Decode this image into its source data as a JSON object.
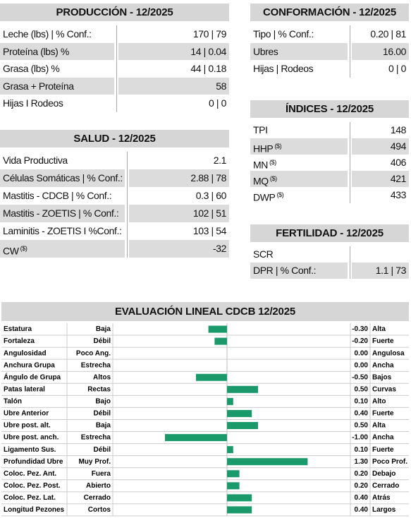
{
  "produccion": {
    "title": "PRODUCCIÓN - 12/2025",
    "rows": [
      {
        "label": "Leche (lbs) | % Conf.:",
        "value": "170 | 79"
      },
      {
        "label": "Proteína (lbs) %",
        "value": "14 | 0.04"
      },
      {
        "label": "Grasa (lbs) %",
        "value": "44 | 0.18"
      },
      {
        "label": "Grasa + Proteína",
        "value": "58"
      },
      {
        "label": "Hijas I Rodeos",
        "value": "0 | 0"
      }
    ]
  },
  "salud": {
    "title": "SALUD - 12/2025",
    "rows": [
      {
        "label": "Vida Productiva",
        "value": "2.1"
      },
      {
        "label": "Células Somáticas | % Conf.:",
        "value": "2.88 | 78"
      },
      {
        "label": "Mastitis - CDCB | % Conf.:",
        "value": "0.3 | 60"
      },
      {
        "label": "Mastitis - ZOETIS | % Conf.:",
        "value": "102 | 51"
      },
      {
        "label": "Laminitis - ZOETIS I %Conf.:",
        "value": "103  | 54"
      },
      {
        "label": "CW",
        "sup": "($)",
        "value": "-32"
      }
    ]
  },
  "conformacion": {
    "title": "CONFORMACIÓN - 12/2025",
    "rows": [
      {
        "label": "Tipo | % Conf.:",
        "value": "0.20 | 81"
      },
      {
        "label": "Ubres",
        "value": "16.00"
      },
      {
        "label": "Hijas | Rodeos",
        "value": "0 | 0"
      }
    ]
  },
  "indices": {
    "title": "ÍNDICES - 12/2025",
    "rows": [
      {
        "label": "TPI",
        "value": "148"
      },
      {
        "label": "HHP",
        "sup": "($)",
        "value": "494"
      },
      {
        "label": "MN",
        "sup": "($)",
        "value": "406"
      },
      {
        "label": "MQ",
        "sup": "($)",
        "value": "421"
      },
      {
        "label": "DWP",
        "sup": "($)",
        "value": "433"
      }
    ]
  },
  "fertilidad": {
    "title": "FERTILIDAD - 12/2025",
    "rows": [
      {
        "label": "SCR"
      },
      {
        "label": "DPR | % Conf.:",
        "value": "1.1 | 73"
      }
    ]
  },
  "linear": {
    "title": "EVALUACIÓN LINEAL CDCB 12/2025",
    "bar_color": "#1a9a6a",
    "traits": [
      {
        "name": "Estatura",
        "low": "Baja",
        "value": -0.3,
        "label": "-0.30",
        "high": "Alta"
      },
      {
        "name": "Fortaleza",
        "low": "Débil",
        "value": -0.2,
        "label": "-0.20",
        "high": "Fuerte"
      },
      {
        "name": "Angulosidad",
        "low": "Poco Ang.",
        "value": 0,
        "label": "0.00",
        "high": "Angulosa"
      },
      {
        "name": "Anchura Grupa",
        "low": "Estrecha",
        "value": 0,
        "label": "0.00",
        "high": "Ancha"
      },
      {
        "name": "Ángulo de Grupa",
        "low": "Altos",
        "value": -0.5,
        "label": "-0.50",
        "high": "Bajos"
      },
      {
        "name": "Patas lateral",
        "low": "Rectas",
        "value": 0.5,
        "label": "0.50",
        "high": "Curvas"
      },
      {
        "name": "Talón",
        "low": "Bajo",
        "value": 0.1,
        "label": "0.10",
        "high": "Alto"
      },
      {
        "name": "Ubre Anterior",
        "low": "Débil",
        "value": 0.4,
        "label": "0.40",
        "high": "Fuerte"
      },
      {
        "name": "Ubre post. alt.",
        "low": "Baja",
        "value": 0.5,
        "label": "0.50",
        "high": "Alta"
      },
      {
        "name": "Ubre post. anch.",
        "low": "Estrecha",
        "value": -1,
        "label": "-1.00",
        "high": "Ancha"
      },
      {
        "name": "Ligamento Sus.",
        "low": "Débil",
        "value": 0.1,
        "label": "0.10",
        "high": "Fuerte"
      },
      {
        "name": "Profundidad Ubre",
        "low": "Muy Prof.",
        "value": 1.3,
        "label": "1.30",
        "high": "Poco Prof."
      },
      {
        "name": "Coloc. Pez. Ant.",
        "low": "Fuera",
        "value": 0.2,
        "label": "0.20",
        "high": "Debajo"
      },
      {
        "name": "Coloc. Pez. Post.",
        "low": "Abierto",
        "value": 0.2,
        "label": "0.20",
        "high": "Cerrado"
      },
      {
        "name": "Coloc. Pez. Lat.",
        "low": "Cerrado",
        "value": 0.4,
        "label": "0.40",
        "high": "Atrás"
      },
      {
        "name": "Longitud Pezones",
        "low": "Cortos",
        "value": 0.4,
        "label": "0.40",
        "high": "Largos"
      }
    ]
  }
}
